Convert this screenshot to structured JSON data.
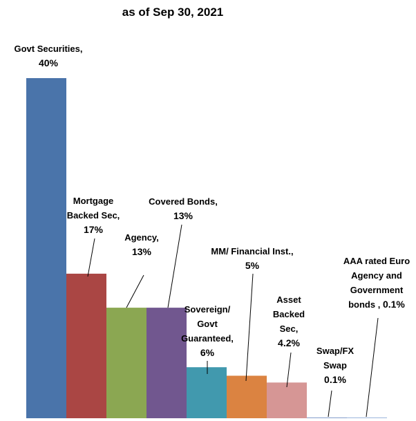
{
  "chart_data": {
    "type": "bar",
    "title": "as of Sep 30, 2021",
    "categories": [
      "Govt Securities,",
      "Mortgage Backed Sec,",
      "Agency,",
      "Covered Bonds,",
      "Sovereign/ Govt Guaranteed,",
      "MM/ Financial Inst.,",
      "Asset Backed Sec,",
      "Swap/FX Swap",
      "AAA rated Euro Agency and Government bonds ,"
    ],
    "values": [
      40,
      17,
      13,
      13,
      6,
      5,
      4.2,
      0.1,
      0.1
    ],
    "value_labels": [
      "40%",
      "17%",
      "13%",
      "13%",
      "6%",
      "5%",
      "4.2%",
      "0.1%",
      "0.1%"
    ],
    "colors": [
      "#4a74aa",
      "#aa4644",
      "#8ba752",
      "#71578f",
      "#4199ae",
      "#db8341",
      "#d69695",
      "#94aad2",
      "#a9c0e0"
    ],
    "ylim": [
      0,
      40
    ]
  }
}
